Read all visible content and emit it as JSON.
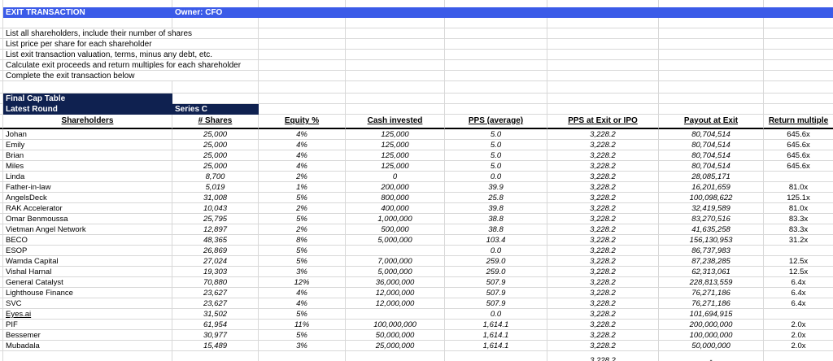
{
  "title_bar": {
    "title": "EXIT TRANSACTION",
    "owner": "Owner: CFO"
  },
  "instructions": [
    "List all shareholders, include their number of shares",
    "List price per share for each shareholder",
    "List exit transaction valuation, terms, minus any debt, etc.",
    "Calculate exit proceeds and return multiples for each shareholder",
    "Complete the exit transaction below"
  ],
  "sections": {
    "final_cap_table": "Final Cap Table",
    "latest_round_label": "Latest Round",
    "latest_round_value": "Series C"
  },
  "table": {
    "headers": [
      "Shareholders",
      "# Shares",
      "Equity %",
      "Cash invested",
      "PPS (average)",
      "PPS at Exit or IPO",
      "Payout at Exit",
      "Return multiple"
    ],
    "rows": [
      {
        "name": "Johan",
        "shares": "25,000",
        "equity": "4%",
        "cash": "125,000",
        "pps_avg": "5.0",
        "pps_exit": "3,228.2",
        "payout": "80,704,514",
        "multiple": "645.6x",
        "link": false
      },
      {
        "name": "Emily",
        "shares": "25,000",
        "equity": "4%",
        "cash": "125,000",
        "pps_avg": "5.0",
        "pps_exit": "3,228.2",
        "payout": "80,704,514",
        "multiple": "645.6x",
        "link": false
      },
      {
        "name": "Brian",
        "shares": "25,000",
        "equity": "4%",
        "cash": "125,000",
        "pps_avg": "5.0",
        "pps_exit": "3,228.2",
        "payout": "80,704,514",
        "multiple": "645.6x",
        "link": false
      },
      {
        "name": "Miles",
        "shares": "25,000",
        "equity": "4%",
        "cash": "125,000",
        "pps_avg": "5.0",
        "pps_exit": "3,228.2",
        "payout": "80,704,514",
        "multiple": "645.6x",
        "link": false
      },
      {
        "name": "Linda",
        "shares": "8,700",
        "equity": "2%",
        "cash": "0",
        "pps_avg": "0.0",
        "pps_exit": "3,228.2",
        "payout": "28,085,171",
        "multiple": "",
        "link": false
      },
      {
        "name": "Father-in-law",
        "shares": "5,019",
        "equity": "1%",
        "cash": "200,000",
        "pps_avg": "39.9",
        "pps_exit": "3,228.2",
        "payout": "16,201,659",
        "multiple": "81.0x",
        "link": false
      },
      {
        "name": "AngelsDeck",
        "shares": "31,008",
        "equity": "5%",
        "cash": "800,000",
        "pps_avg": "25.8",
        "pps_exit": "3,228.2",
        "payout": "100,098,622",
        "multiple": "125.1x",
        "link": false
      },
      {
        "name": "RAK Accelerator",
        "shares": "10,043",
        "equity": "2%",
        "cash": "400,000",
        "pps_avg": "39.8",
        "pps_exit": "3,228.2",
        "payout": "32,419,589",
        "multiple": "81.0x",
        "link": false
      },
      {
        "name": "Omar Benmoussa",
        "shares": "25,795",
        "equity": "5%",
        "cash": "1,000,000",
        "pps_avg": "38.8",
        "pps_exit": "3,228.2",
        "payout": "83,270,516",
        "multiple": "83.3x",
        "link": false
      },
      {
        "name": "Vietman Angel Network",
        "shares": "12,897",
        "equity": "2%",
        "cash": "500,000",
        "pps_avg": "38.8",
        "pps_exit": "3,228.2",
        "payout": "41,635,258",
        "multiple": "83.3x",
        "link": false
      },
      {
        "name": "BECO",
        "shares": "48,365",
        "equity": "8%",
        "cash": "5,000,000",
        "pps_avg": "103.4",
        "pps_exit": "3,228.2",
        "payout": "156,130,953",
        "multiple": "31.2x",
        "link": false
      },
      {
        "name": "ESOP",
        "shares": "26,869",
        "equity": "5%",
        "cash": "",
        "pps_avg": "0.0",
        "pps_exit": "3,228.2",
        "payout": "86,737,983",
        "multiple": "",
        "link": false
      },
      {
        "name": "Wamda Capital",
        "shares": "27,024",
        "equity": "5%",
        "cash": "7,000,000",
        "pps_avg": "259.0",
        "pps_exit": "3,228.2",
        "payout": "87,238,285",
        "multiple": "12.5x",
        "link": false
      },
      {
        "name": "Vishal Harnal",
        "shares": "19,303",
        "equity": "3%",
        "cash": "5,000,000",
        "pps_avg": "259.0",
        "pps_exit": "3,228.2",
        "payout": "62,313,061",
        "multiple": "12.5x",
        "link": false
      },
      {
        "name": "General Catalyst",
        "shares": "70,880",
        "equity": "12%",
        "cash": "36,000,000",
        "pps_avg": "507.9",
        "pps_exit": "3,228.2",
        "payout": "228,813,559",
        "multiple": "6.4x",
        "link": false
      },
      {
        "name": "Lighthouse Finance",
        "shares": "23,627",
        "equity": "4%",
        "cash": "12,000,000",
        "pps_avg": "507.9",
        "pps_exit": "3,228.2",
        "payout": "76,271,186",
        "multiple": "6.4x",
        "link": false
      },
      {
        "name": "SVC",
        "shares": "23,627",
        "equity": "4%",
        "cash": "12,000,000",
        "pps_avg": "507.9",
        "pps_exit": "3,228.2",
        "payout": "76,271,186",
        "multiple": "6.4x",
        "link": false
      },
      {
        "name": "Eyes.ai",
        "shares": "31,502",
        "equity": "5%",
        "cash": "",
        "pps_avg": "0.0",
        "pps_exit": "3,228.2",
        "payout": "101,694,915",
        "multiple": "",
        "link": true
      },
      {
        "name": "PIF",
        "shares": "61,954",
        "equity": "11%",
        "cash": "100,000,000",
        "pps_avg": "1,614.1",
        "pps_exit": "3,228.2",
        "payout": "200,000,000",
        "multiple": "2.0x",
        "link": false
      },
      {
        "name": "Bessemer",
        "shares": "30,977",
        "equity": "5%",
        "cash": "50,000,000",
        "pps_avg": "1,614.1",
        "pps_exit": "3,228.2",
        "payout": "100,000,000",
        "multiple": "2.0x",
        "link": false
      },
      {
        "name": "Mubadala",
        "shares": "15,489",
        "equity": "3%",
        "cash": "25,000,000",
        "pps_avg": "1,614.1",
        "pps_exit": "3,228.2",
        "payout": "50,000,000",
        "multiple": "2.0x",
        "link": false
      }
    ],
    "partial_row": {
      "name": "",
      "shares": "",
      "equity": "",
      "cash": "",
      "pps_avg": "",
      "pps_exit": "3,228.2",
      "payout": "-",
      "multiple": ""
    }
  },
  "colors": {
    "accent_blue": "#3b5be8",
    "navy": "#0f2150",
    "gridline": "#d8d8d8"
  }
}
